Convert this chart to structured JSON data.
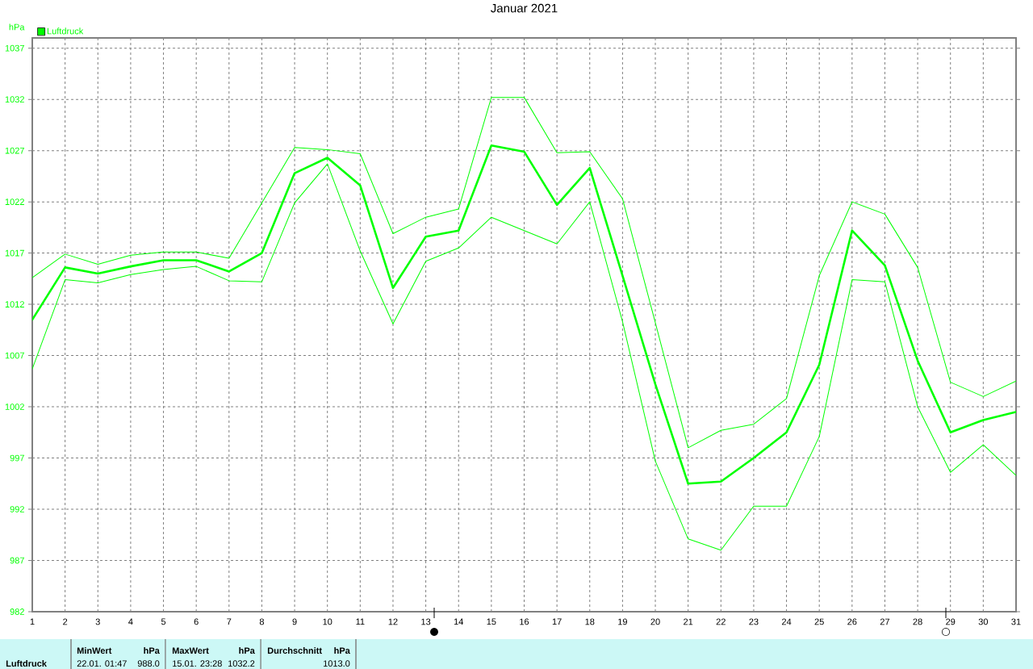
{
  "chart_data": {
    "type": "line",
    "title": "Januar 2021",
    "ylabel": "hPa",
    "x": [
      1,
      2,
      3,
      4,
      5,
      6,
      7,
      8,
      9,
      10,
      11,
      12,
      13,
      14,
      15,
      16,
      17,
      18,
      19,
      20,
      21,
      22,
      23,
      24,
      25,
      26,
      27,
      28,
      29,
      30,
      31
    ],
    "series": [
      {
        "name": "Luftdruck",
        "color": "#00ff00",
        "values": [
          1010.5,
          1015.6,
          1015.0,
          1015.7,
          1016.3,
          1016.3,
          1015.2,
          1017.0,
          1024.8,
          1026.3,
          1023.6,
          1013.6,
          1018.6,
          1019.2,
          1027.5,
          1026.9,
          1021.7,
          1025.3,
          1014.8,
          1004.2,
          994.5,
          994.7,
          997.0,
          999.5,
          1006.1,
          1019.2,
          1015.8,
          1006.5,
          999.5,
          1000.7,
          1001.5
        ]
      },
      {
        "color": "#00ff00",
        "values": [
          1014.6,
          1016.9,
          1015.9,
          1016.8,
          1017.1,
          1017.1,
          1016.5,
          1021.9,
          1027.3,
          1027.1,
          1026.7,
          1018.9,
          1020.5,
          1021.3,
          1032.2,
          1032.2,
          1026.8,
          1026.9,
          1022.3,
          1010.2,
          998.0,
          999.7,
          1000.3,
          1002.8,
          1014.8,
          1022.0,
          1020.8,
          1015.6,
          1004.4,
          1003.0,
          1004.5
        ]
      },
      {
        "color": "#00ff00",
        "values": [
          1005.7,
          1014.4,
          1014.1,
          1014.9,
          1015.4,
          1015.7,
          1014.3,
          1014.2,
          1021.9,
          1025.7,
          1017.2,
          1010.1,
          1016.2,
          1017.5,
          1020.5,
          1019.2,
          1017.9,
          1022.0,
          1010.3,
          996.7,
          989.1,
          988.0,
          992.3,
          992.3,
          999.1,
          1014.4,
          1014.2,
          1002.0,
          995.6,
          998.3,
          995.3
        ]
      }
    ],
    "xlim": [
      1,
      31
    ],
    "ylim": [
      982,
      1038
    ],
    "xticks": [
      1,
      2,
      3,
      4,
      5,
      6,
      7,
      8,
      9,
      10,
      11,
      12,
      13,
      14,
      15,
      16,
      17,
      18,
      19,
      20,
      21,
      22,
      23,
      24,
      25,
      26,
      27,
      28,
      29,
      30,
      31
    ],
    "yticks": [
      982,
      987,
      992,
      997,
      1002,
      1007,
      1012,
      1017,
      1022,
      1027,
      1032,
      1037
    ],
    "grid": true,
    "legend": "top left",
    "annotations": [
      "●",
      "○",
      "MinWert",
      "hPa",
      "MaxWert",
      "hPa",
      "Durchschnitt",
      "hPa",
      "Luftdruck",
      "22.01. 01:47",
      "988.0",
      "15.01. 23:28",
      "1032.2",
      "1013.0"
    ]
  }
}
